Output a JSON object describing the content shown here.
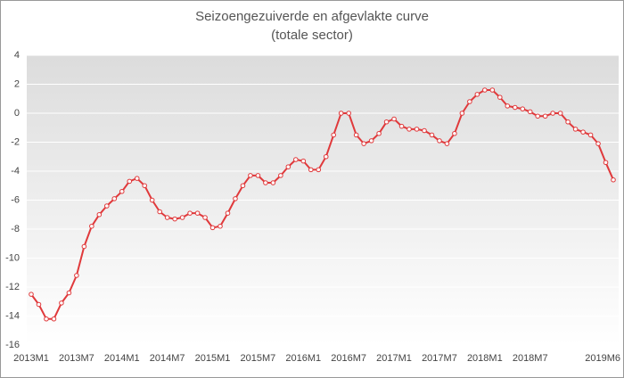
{
  "chart_data": {
    "type": "line",
    "title": "Seizoengezuiverde en afgevlakte curve",
    "subtitle": "(totale sector)",
    "categories": [
      "2013M1",
      null,
      null,
      null,
      null,
      null,
      "2013M7",
      null,
      null,
      null,
      null,
      null,
      "2014M1",
      null,
      null,
      null,
      null,
      null,
      "2014M7",
      null,
      null,
      null,
      null,
      null,
      "2015M1",
      null,
      null,
      null,
      null,
      null,
      "2015M7",
      null,
      null,
      null,
      null,
      null,
      "2016M1",
      null,
      null,
      null,
      null,
      null,
      "2016M7",
      null,
      null,
      null,
      null,
      null,
      "2017M1",
      null,
      null,
      null,
      null,
      null,
      "2017M7",
      null,
      null,
      null,
      null,
      null,
      "2018M1",
      null,
      null,
      null,
      null,
      null,
      "2018M7",
      null,
      null,
      null,
      null,
      null,
      null,
      null,
      null,
      null,
      null,
      "2019M6"
    ],
    "series": [
      {
        "color": "#e0393b",
        "values": [
          -12.5,
          -13.2,
          -14.2,
          -14.2,
          -13.1,
          -12.4,
          -11.2,
          -9.2,
          -7.8,
          -7.0,
          -6.4,
          -5.9,
          -5.4,
          -4.7,
          -4.5,
          -5.0,
          -6.0,
          -6.8,
          -7.2,
          -7.3,
          -7.2,
          -6.9,
          -6.9,
          -7.2,
          -7.9,
          -7.8,
          -6.9,
          -5.9,
          -5.0,
          -4.3,
          -4.3,
          -4.8,
          -4.8,
          -4.3,
          -3.7,
          -3.2,
          -3.3,
          -3.9,
          -3.9,
          -3.0,
          -1.5,
          0.0,
          0.0,
          -1.5,
          -2.1,
          -1.9,
          -1.4,
          -0.6,
          -0.4,
          -0.9,
          -1.1,
          -1.1,
          -1.2,
          -1.5,
          -1.9,
          -2.1,
          -1.4,
          0.0,
          0.8,
          1.3,
          1.6,
          1.6,
          1.1,
          0.5,
          0.4,
          0.3,
          0.1,
          -0.2,
          -0.2,
          0.0,
          0.0,
          -0.6,
          -1.1,
          -1.3,
          -1.5,
          -2.1,
          -3.4,
          -4.6
        ]
      }
    ],
    "ylim": [
      -16,
      4
    ],
    "yticks": [
      -16,
      -14,
      -12,
      -10,
      -8,
      -6,
      -4,
      -2,
      0,
      2,
      4
    ],
    "grid": true
  }
}
